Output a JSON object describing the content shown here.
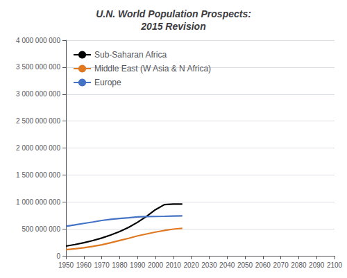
{
  "chart_data": {
    "type": "line",
    "title": "U.N. World Population Prospects:\n2015 Revision",
    "xlim": [
      1950,
      2100
    ],
    "xticks": [
      1950,
      1960,
      1970,
      1980,
      1990,
      2000,
      2010,
      2020,
      2030,
      2040,
      2050,
      2060,
      2070,
      2080,
      2090,
      2100
    ],
    "ylim": [
      0,
      4000000000
    ],
    "yticks": [
      0,
      {
        "value": 500000000,
        "label": "500 000 000"
      },
      {
        "value": 1000000000,
        "label": "1 000 000 000"
      },
      {
        "value": 1500000000,
        "label": "1 500 000 000"
      },
      {
        "value": 2000000000,
        "label": "2 000 000 000"
      },
      {
        "value": 2500000000,
        "label": "2 500 000 000"
      },
      {
        "value": 3000000000,
        "label": "3 000 000 000"
      },
      {
        "value": 3500000000,
        "label": "3 500 000 000"
      },
      {
        "value": 4000000000,
        "label": "4 000 000 000"
      }
    ],
    "grid": true,
    "legend": "upper left",
    "series": [
      {
        "name": "Sub-Saharan Africa",
        "color": "#000000",
        "x": [
          1950,
          1955,
          1960,
          1965,
          1970,
          1975,
          1980,
          1985,
          1990,
          1995,
          2000,
          2005,
          2010,
          2015
        ],
        "values": [
          180000000,
          209000000,
          243000000,
          283000000,
          330000000,
          386000000,
          450000000,
          528000000,
          622000000,
          731000000,
          856000000,
          950000000,
          960000000,
          960000000
        ]
      },
      {
        "name": "Middle East (W Asia & N Africa)",
        "color": "#e07820",
        "x": [
          1950,
          1955,
          1960,
          1965,
          1970,
          1975,
          1980,
          1985,
          1990,
          1995,
          2000,
          2005,
          2010,
          2015
        ],
        "values": [
          115000000,
          130000000,
          150000000,
          175000000,
          205000000,
          242000000,
          285000000,
          325000000,
          370000000,
          405000000,
          440000000,
          470000000,
          495000000,
          510000000
        ]
      },
      {
        "name": "Europe",
        "color": "#4472c4",
        "x": [
          1950,
          1955,
          1960,
          1965,
          1970,
          1975,
          1980,
          1985,
          1990,
          1995,
          2000,
          2005,
          2010,
          2015
        ],
        "values": [
          548000000,
          574000000,
          601000000,
          627000000,
          656000000,
          676000000,
          694000000,
          706000000,
          722000000,
          728000000,
          730000000,
          733000000,
          738000000,
          742000000
        ]
      }
    ]
  }
}
